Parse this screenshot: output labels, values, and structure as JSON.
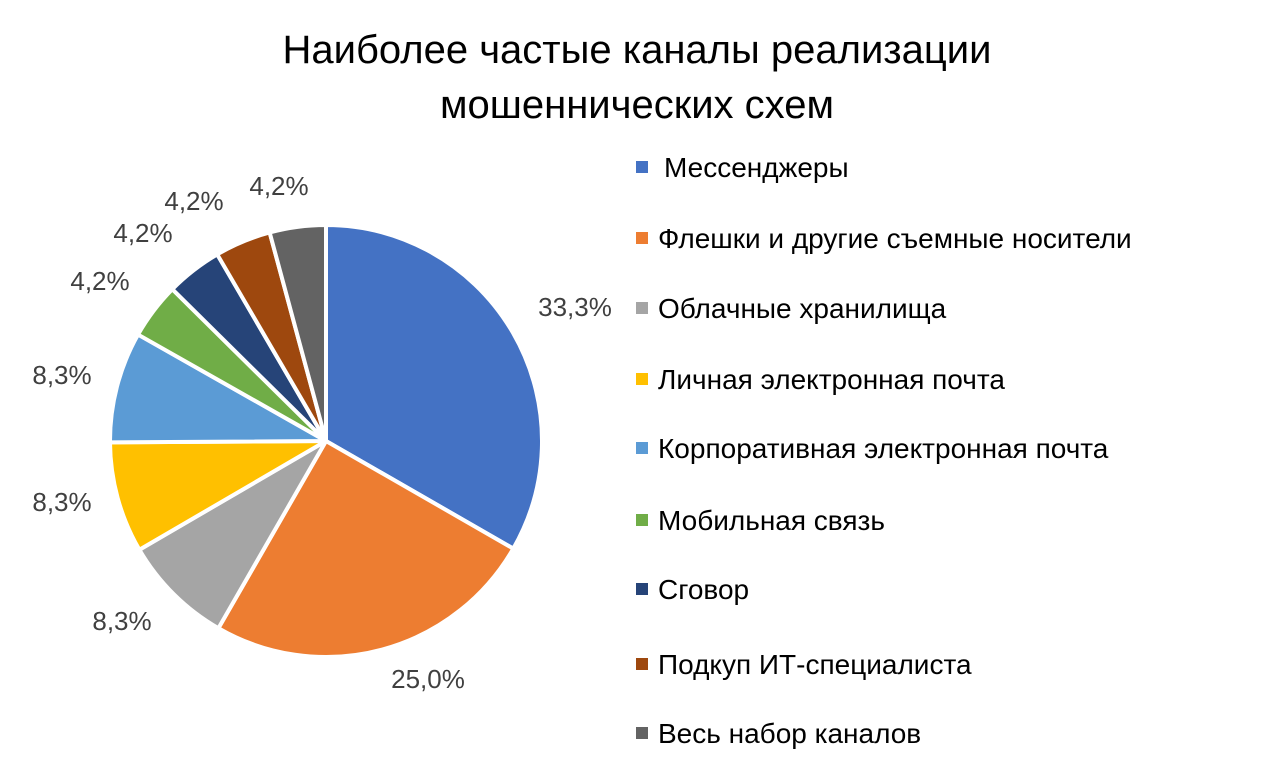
{
  "chart_data": {
    "type": "pie",
    "title_lines": [
      "Наиболее частые каналы реализации",
      "мошеннических схем"
    ],
    "legend_position": "right",
    "slices": [
      {
        "label": "Мессенджеры",
        "value": 33.3,
        "value_label": "33,3%",
        "color": "#4472C4"
      },
      {
        "label": "Флешки и другие съемные носители",
        "value": 25.0,
        "value_label": "25,0%",
        "color": "#ED7D31"
      },
      {
        "label": "Облачные хранилища",
        "value": 8.3,
        "value_label": "8,3%",
        "color": "#A5A5A5"
      },
      {
        "label": "Личная электронная почта",
        "value": 8.3,
        "value_label": "8,3%",
        "color": "#FFC000"
      },
      {
        "label": "Корпоративная электронная почта",
        "value": 8.3,
        "value_label": "8,3%",
        "color": "#5B9BD5"
      },
      {
        "label": "Мобильная связь",
        "value": 4.2,
        "value_label": "4,2%",
        "color": "#70AD47"
      },
      {
        "label": "Сговор",
        "value": 4.2,
        "value_label": "4,2%",
        "color": "#264478"
      },
      {
        "label": "Подкуп ИТ-специалиста",
        "value": 4.2,
        "value_label": "4,2%",
        "color": "#9E480E"
      },
      {
        "label": "Весь набор каналов",
        "value": 4.2,
        "value_label": "4,2%",
        "color": "#636363"
      }
    ]
  }
}
